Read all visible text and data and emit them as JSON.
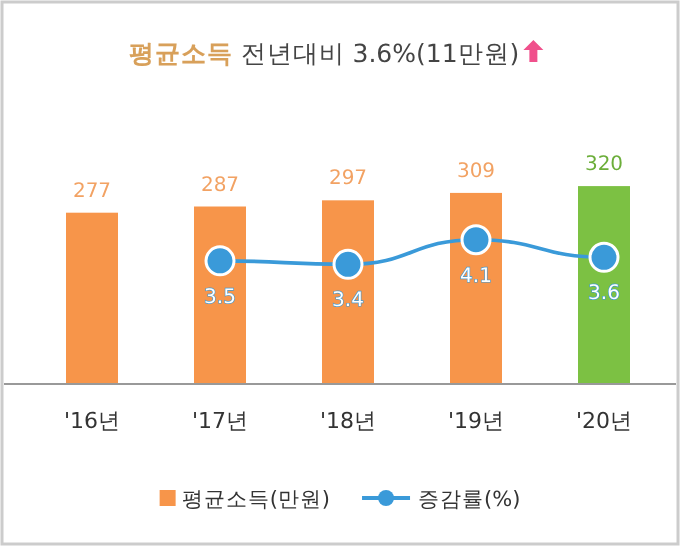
{
  "chart_data": {
    "type": "bar",
    "title": "평균소득 전년대비 3.6%(11만원)",
    "categories": [
      "'16년",
      "'17년",
      "'18년",
      "'19년",
      "'20년"
    ],
    "series": [
      {
        "name": "평균소득(만원)",
        "color": "#f7954a",
        "colors": [
          "#f7954a",
          "#f7954a",
          "#f7954a",
          "#f7954a",
          "#7cc143"
        ],
        "values": [
          277,
          287,
          297,
          309,
          320
        ]
      },
      {
        "name": "증감률(%)",
        "type": "line",
        "axis": "y2",
        "color": "#3a9ad9",
        "values": [
          null,
          3.5,
          3.4,
          4.1,
          3.6
        ]
      }
    ],
    "tick_labels": "x",
    "data_labels": true,
    "legend": "bottom",
    "marker": "circle"
  }
}
